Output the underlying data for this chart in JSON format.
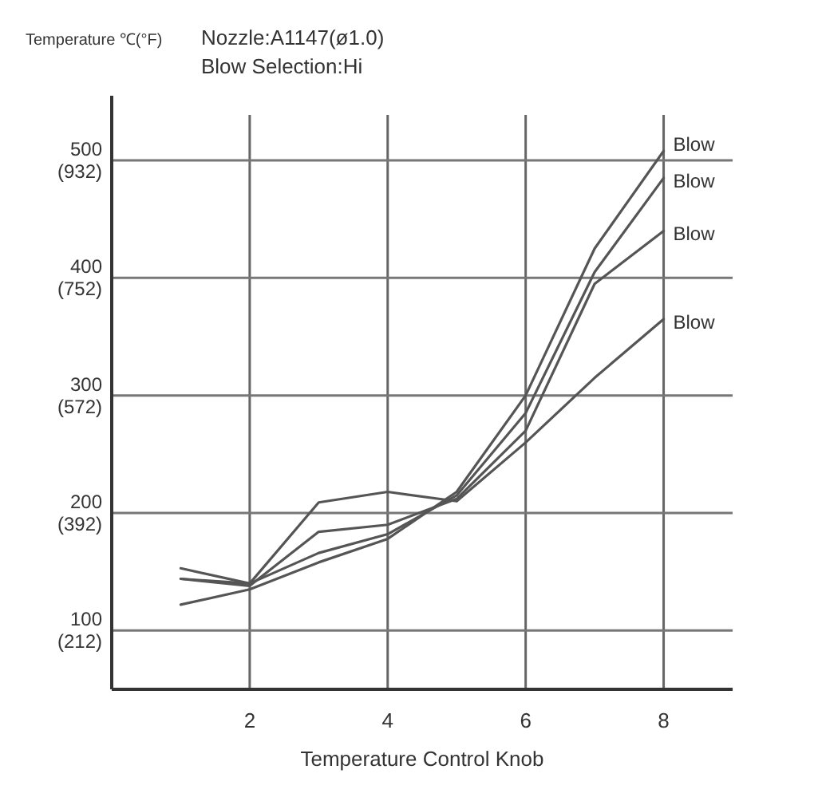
{
  "chart_data": {
    "type": "line",
    "title": "Nozzle:A1147(ø1.0)",
    "subtitle": "Blow Selection:Hi",
    "ylabel": "Temperature ℃(°F)",
    "xlabel": "Temperature Control Knob",
    "x": [
      1,
      2,
      3,
      4,
      5,
      6,
      7,
      8
    ],
    "xlim": [
      0,
      9
    ],
    "xticks": [
      2,
      4,
      6,
      8
    ],
    "ylim": [
      50,
      555
    ],
    "yticks": [
      100,
      200,
      300,
      400,
      500
    ],
    "y2lim": [
      122,
      1031
    ],
    "y2ticks": [
      {
        "value": 212,
        "label": "(212)"
      },
      {
        "value": 392,
        "label": "(392)"
      },
      {
        "value": 572,
        "label": "(572)"
      },
      {
        "value": 752,
        "label": "(752)"
      },
      {
        "value": 932,
        "label": "(932)"
      }
    ],
    "grid": true,
    "marker": "none",
    "line_style": "solid",
    "series": [
      {
        "name": "Blow",
        "color": "#555555",
        "values": [
          122,
          135,
          158,
          178,
          218,
          300,
          425,
          508
        ]
      },
      {
        "name": "Blow",
        "color": "#555555",
        "values": [
          144,
          140,
          166,
          182,
          215,
          285,
          405,
          485
        ]
      },
      {
        "name": "Blow",
        "color": "#555555",
        "values": [
          144,
          138,
          184,
          190,
          212,
          270,
          395,
          440
        ]
      },
      {
        "name": "Blow",
        "color": "#555555",
        "values": [
          153,
          140,
          209,
          218,
          210,
          260,
          315,
          365
        ]
      }
    ]
  }
}
